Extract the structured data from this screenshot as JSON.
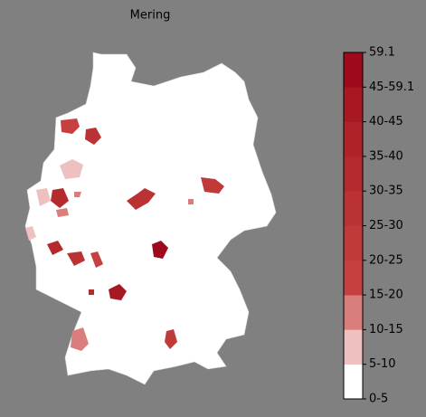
{
  "title": "Mering",
  "colorbar": {
    "labels": [
      "0-5",
      "5-10",
      "10-15",
      "15-20",
      "20-25",
      "25-30",
      "30-35",
      "35-40",
      "40-45",
      "45-59.1",
      "59.1"
    ],
    "colors": [
      "#ffffff",
      "#efc0c0",
      "#d97d7d",
      "#c5403f",
      "#c03a3a",
      "#bb3234",
      "#b52a2e",
      "#af2229",
      "#a81822",
      "#9e0a1b"
    ]
  }
}
